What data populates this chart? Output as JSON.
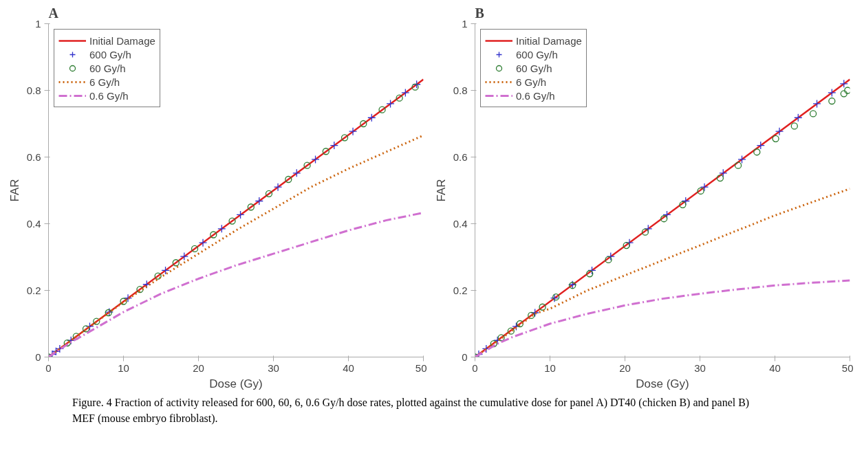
{
  "chart_data": [
    {
      "type": "line",
      "title": "A",
      "xlabel": "Dose (Gy)",
      "ylabel": "FAR",
      "xlim": [
        0,
        50
      ],
      "ylim": [
        0,
        1
      ],
      "xticks": [
        0,
        10,
        20,
        30,
        40,
        50
      ],
      "yticks": [
        0,
        0.2,
        0.4,
        0.6,
        0.8,
        1
      ],
      "grid": false,
      "legend": "top left",
      "series": [
        {
          "name": "Initial Damage",
          "line_style": "solid",
          "color": "#e02020",
          "x": [
            0,
            50
          ],
          "values": [
            0,
            0.833
          ]
        },
        {
          "name": "600 Gy/h",
          "type": "scatter",
          "marker": "cross",
          "color": "#3333cc",
          "x": [
            0,
            0.5,
            1,
            1.5,
            3,
            5.5,
            8.1,
            10.6,
            13.1,
            15.6,
            18.1,
            20.6,
            23.1,
            25.6,
            28.1,
            30.6,
            33.1,
            35.6,
            38.1,
            40.6,
            43.1,
            45.6,
            47.6,
            49.1
          ],
          "values": [
            0,
            0.008,
            0.017,
            0.025,
            0.05,
            0.092,
            0.135,
            0.177,
            0.218,
            0.26,
            0.302,
            0.343,
            0.385,
            0.427,
            0.468,
            0.51,
            0.552,
            0.593,
            0.635,
            0.677,
            0.718,
            0.76,
            0.793,
            0.818
          ]
        },
        {
          "name": "60 Gy/h",
          "type": "scatter",
          "marker": "circle",
          "color": "#2e7d32",
          "x": [
            0,
            2.5,
            3.7,
            5,
            6.4,
            8,
            10,
            12.2,
            14.6,
            17,
            19.5,
            22,
            24.5,
            27,
            29.4,
            32,
            34.5,
            37,
            39.5,
            42,
            44.5,
            46.8,
            48.9
          ],
          "values": [
            0,
            0.042,
            0.062,
            0.085,
            0.107,
            0.133,
            0.167,
            0.203,
            0.243,
            0.283,
            0.325,
            0.367,
            0.408,
            0.45,
            0.49,
            0.533,
            0.575,
            0.617,
            0.658,
            0.7,
            0.742,
            0.777,
            0.81
          ]
        },
        {
          "name": "6 Gy/h",
          "line_style": "dotted",
          "color": "#cc6611",
          "x": [
            0,
            5,
            10,
            13,
            15,
            20,
            25,
            30,
            35,
            40,
            45,
            50
          ],
          "values": [
            0,
            0.083,
            0.165,
            0.21,
            0.24,
            0.31,
            0.38,
            0.445,
            0.51,
            0.565,
            0.615,
            0.665
          ]
        },
        {
          "name": "0.6 Gy/h",
          "line_style": "dashed",
          "color": "#d070d0",
          "x": [
            0,
            3,
            5,
            10,
            15,
            20,
            25,
            30,
            35,
            40,
            45,
            50
          ],
          "values": [
            0,
            0.045,
            0.07,
            0.135,
            0.19,
            0.235,
            0.275,
            0.31,
            0.345,
            0.38,
            0.41,
            0.433
          ]
        }
      ]
    },
    {
      "type": "line",
      "title": "B",
      "xlabel": "Dose (Gy)",
      "ylabel": "FAR",
      "xlim": [
        0,
        50
      ],
      "ylim": [
        0,
        1
      ],
      "xticks": [
        0,
        10,
        20,
        30,
        40,
        50
      ],
      "yticks": [
        0,
        0.2,
        0.4,
        0.6,
        0.8,
        1
      ],
      "grid": false,
      "legend": "top left",
      "annotations": [
        "Figure. 4 Fraction of activity released for 600, 60, 6, 0.6 Gy/h dose rates, plotted against the cumulative dose for panel A) DT40 (chicken B) and panel B) MEF (mouse embryo fibroblast)."
      ],
      "series": [
        {
          "name": "Initial Damage",
          "line_style": "solid",
          "color": "#e02020",
          "x": [
            0,
            50
          ],
          "values": [
            0,
            0.833
          ]
        },
        {
          "name": "600 Gy/h",
          "type": "scatter",
          "marker": "cross",
          "color": "#3333cc",
          "x": [
            0,
            0.5,
            1.5,
            3,
            5.5,
            8,
            10.6,
            13,
            15.6,
            18.1,
            20.6,
            23.1,
            25.6,
            28.1,
            30.6,
            33.1,
            35.6,
            38.1,
            40.6,
            43.1,
            45.6,
            47.6,
            49.2
          ],
          "values": [
            0,
            0.008,
            0.025,
            0.05,
            0.092,
            0.133,
            0.177,
            0.217,
            0.26,
            0.302,
            0.343,
            0.385,
            0.427,
            0.468,
            0.51,
            0.552,
            0.593,
            0.635,
            0.677,
            0.718,
            0.76,
            0.793,
            0.82
          ]
        },
        {
          "name": "60 Gy/h",
          "type": "scatter",
          "marker": "circle",
          "color": "#2e7d32",
          "x": [
            0,
            2.5,
            3.5,
            4.8,
            6,
            7.5,
            9,
            10.8,
            13,
            15.3,
            17.8,
            20.2,
            22.7,
            25.2,
            27.7,
            30.1,
            32.7,
            35.1,
            37.6,
            40.1,
            42.6,
            45.1,
            47.6,
            49.2,
            49.7
          ],
          "values": [
            0,
            0.04,
            0.058,
            0.078,
            0.1,
            0.125,
            0.15,
            0.18,
            0.215,
            0.25,
            0.292,
            0.335,
            0.375,
            0.415,
            0.457,
            0.498,
            0.537,
            0.575,
            0.615,
            0.655,
            0.693,
            0.73,
            0.768,
            0.79,
            0.8
          ]
        },
        {
          "name": "6 Gy/h",
          "line_style": "dotted",
          "color": "#cc6611",
          "x": [
            0,
            5,
            8,
            10,
            15,
            20,
            25,
            30,
            35,
            40,
            45,
            50
          ],
          "values": [
            0,
            0.08,
            0.13,
            0.145,
            0.2,
            0.245,
            0.29,
            0.335,
            0.38,
            0.425,
            0.465,
            0.505
          ]
        },
        {
          "name": "0.6 Gy/h",
          "line_style": "dashed",
          "color": "#d070d0",
          "x": [
            0,
            3,
            5,
            10,
            15,
            20,
            25,
            30,
            35,
            40,
            45,
            50
          ],
          "values": [
            0,
            0.04,
            0.06,
            0.1,
            0.13,
            0.155,
            0.175,
            0.19,
            0.203,
            0.215,
            0.223,
            0.23
          ]
        }
      ]
    }
  ]
}
